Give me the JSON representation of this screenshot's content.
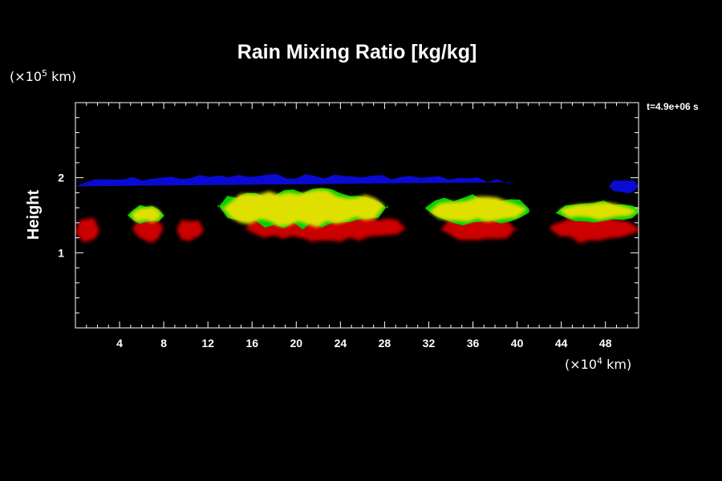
{
  "chart_data": {
    "type": "heatmap",
    "title": "Rain Mixing Ratio [kg/kg]",
    "ylabel": "Height",
    "x_unit": {
      "base": "(×10",
      "exp": "4",
      "rest": " km)"
    },
    "y_unit": {
      "base": "(×10",
      "exp": "5",
      "rest": " km)"
    },
    "time_label": "t=4.9e+06 s",
    "xlim": [
      0,
      51
    ],
    "ylim": [
      0,
      3
    ],
    "x_ticks": [
      "4",
      "8",
      "12",
      "16",
      "20",
      "24",
      "28",
      "32",
      "36",
      "40",
      "44",
      "48"
    ],
    "x_tick_values": [
      4,
      8,
      12,
      16,
      20,
      24,
      28,
      32,
      36,
      40,
      44,
      48
    ],
    "y_ticks": [
      "1",
      "2"
    ],
    "y_tick_values": [
      1,
      2
    ],
    "colors": {
      "blue": "#0a0ad2",
      "red": "#cc0000",
      "yellow": "#e0e000",
      "green": "#00d000"
    },
    "regions": [
      {
        "name": "blue-band-1",
        "color": "blue",
        "x": [
          0,
          40.8
        ],
        "y": [
          1.75,
          2.02
        ]
      },
      {
        "name": "blue-band-2",
        "color": "blue",
        "x": [
          48.3,
          51
        ],
        "y": [
          1.8,
          1.98
        ]
      },
      {
        "name": "red-1",
        "color": "red",
        "x": [
          0,
          2.2
        ],
        "y": [
          1.15,
          1.45
        ]
      },
      {
        "name": "red-2",
        "color": "red",
        "x": [
          5.2,
          8.0
        ],
        "y": [
          1.15,
          1.45
        ]
      },
      {
        "name": "red-3",
        "color": "red",
        "x": [
          9.2,
          11.6
        ],
        "y": [
          1.17,
          1.45
        ]
      },
      {
        "name": "red-4",
        "color": "red",
        "x": [
          15.4,
          30.0
        ],
        "y": [
          1.18,
          1.5
        ]
      },
      {
        "name": "red-5",
        "color": "red",
        "x": [
          33.0,
          40.0
        ],
        "y": [
          1.18,
          1.45
        ]
      },
      {
        "name": "red-6",
        "color": "red",
        "x": [
          43.0,
          51.0
        ],
        "y": [
          1.15,
          1.5
        ]
      },
      {
        "name": "yellow-1",
        "color": "yellow",
        "x": [
          5.0,
          7.8
        ],
        "y": [
          1.42,
          1.6
        ]
      },
      {
        "name": "yellow-2",
        "color": "yellow",
        "x": [
          13.2,
          28.0
        ],
        "y": [
          1.38,
          1.8
        ]
      },
      {
        "name": "yellow-3",
        "color": "yellow",
        "x": [
          32.0,
          40.8
        ],
        "y": [
          1.42,
          1.72
        ]
      },
      {
        "name": "yellow-4",
        "color": "yellow",
        "x": [
          43.8,
          51.0
        ],
        "y": [
          1.45,
          1.65
        ]
      }
    ]
  }
}
